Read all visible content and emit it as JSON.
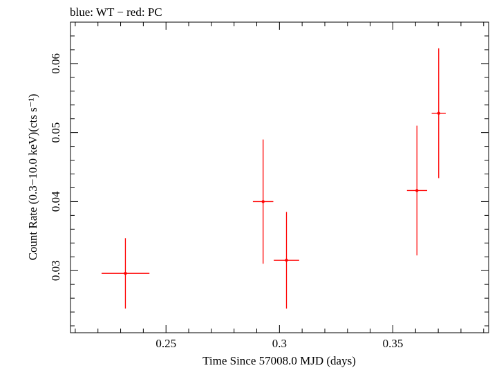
{
  "chart_data": {
    "type": "scatter",
    "title": "blue: WT − red: PC",
    "xlabel": "Time Since 57008.0 MJD (days)",
    "ylabel": "Count Rate (0.3−10.0 keV)(cts s⁻¹)",
    "xlim": [
      0.2079,
      0.3922
    ],
    "ylim": [
      0.021,
      0.066
    ],
    "x_ticks": [
      0.25,
      0.3,
      0.35
    ],
    "x_tick_labels": [
      "0.25",
      "0.3",
      "0.35"
    ],
    "y_ticks": [
      0.03,
      0.04,
      0.05,
      0.06
    ],
    "y_tick_labels": [
      "0.03",
      "0.04",
      "0.05",
      "0.06"
    ],
    "grid": false,
    "series": [
      {
        "color": "#ff0000",
        "points": [
          {
            "x": 0.2321,
            "y": 0.0296,
            "xerr": [
              0.0105,
              0.0106
            ],
            "yerr": [
              0.0051,
              0.0051
            ]
          },
          {
            "x": 0.2928,
            "y": 0.04,
            "xerr": [
              0.0045,
              0.0045
            ],
            "yerr": [
              0.009,
              0.009
            ]
          },
          {
            "x": 0.3031,
            "y": 0.0315,
            "xerr": [
              0.0056,
              0.0056
            ],
            "yerr": [
              0.007,
              0.007
            ]
          },
          {
            "x": 0.3606,
            "y": 0.0416,
            "xerr": [
              0.0044,
              0.0045
            ],
            "yerr": [
              0.0094,
              0.0094
            ]
          },
          {
            "x": 0.3702,
            "y": 0.0528,
            "xerr": [
              0.0031,
              0.0031
            ],
            "yerr": [
              0.0094,
              0.0094
            ]
          }
        ]
      }
    ]
  }
}
